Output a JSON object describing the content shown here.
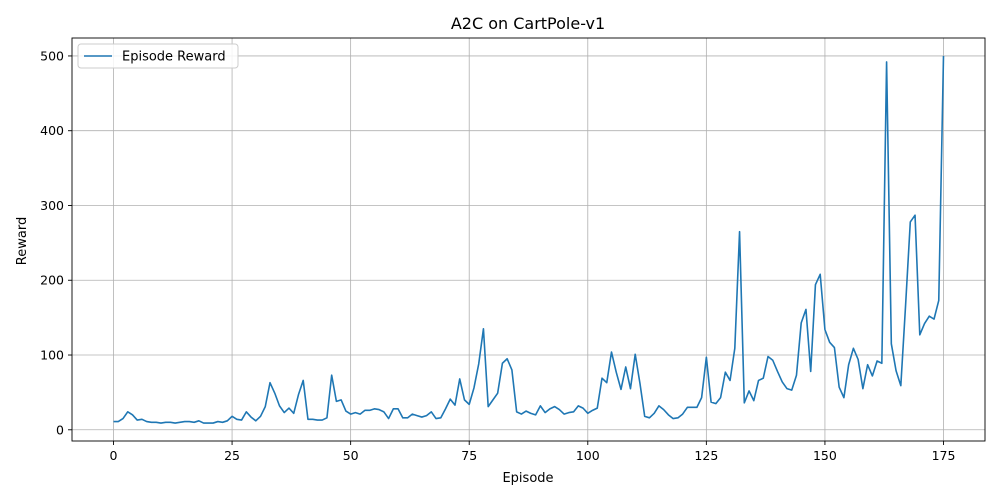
{
  "chart_data": {
    "type": "line",
    "title": "A2C on CartPole-v1",
    "xlabel": "Episode",
    "ylabel": "Reward",
    "xlim": [
      -8.75,
      183.75
    ],
    "ylim": [
      -15,
      524
    ],
    "xticks": [
      0,
      25,
      50,
      75,
      100,
      125,
      150,
      175
    ],
    "yticks": [
      0,
      100,
      200,
      300,
      400,
      500
    ],
    "grid": true,
    "legend": "upper left",
    "series": [
      {
        "name": "Episode Reward",
        "color": "#1f77b4",
        "x": [
          0,
          1,
          2,
          3,
          4,
          5,
          6,
          7,
          8,
          9,
          10,
          11,
          12,
          13,
          14,
          15,
          16,
          17,
          18,
          19,
          20,
          21,
          22,
          23,
          24,
          25,
          26,
          27,
          28,
          29,
          30,
          31,
          32,
          33,
          34,
          35,
          36,
          37,
          38,
          39,
          40,
          41,
          42,
          43,
          44,
          45,
          46,
          47,
          48,
          49,
          50,
          51,
          52,
          53,
          54,
          55,
          56,
          57,
          58,
          59,
          60,
          61,
          62,
          63,
          64,
          65,
          66,
          67,
          68,
          69,
          70,
          71,
          72,
          73,
          74,
          75,
          76,
          77,
          78,
          79,
          80,
          81,
          82,
          83,
          84,
          85,
          86,
          87,
          88,
          89,
          90,
          91,
          92,
          93,
          94,
          95,
          96,
          97,
          98,
          99,
          100,
          101,
          102,
          103,
          104,
          105,
          106,
          107,
          108,
          109,
          110,
          111,
          112,
          113,
          114,
          115,
          116,
          117,
          118,
          119,
          120,
          121,
          122,
          123,
          124,
          125,
          126,
          127,
          128,
          129,
          130,
          131,
          132,
          133,
          134,
          135,
          136,
          137,
          138,
          139,
          140,
          141,
          142,
          143,
          144,
          145,
          146,
          147,
          148,
          149,
          150,
          151,
          152,
          153,
          154,
          155,
          156,
          157,
          158,
          159,
          160,
          161,
          162,
          163,
          164,
          165,
          166,
          167,
          168,
          169,
          170,
          171,
          172,
          173,
          174,
          175
        ],
        "values": [
          11,
          11,
          15,
          24,
          20,
          13,
          14,
          11,
          10,
          10,
          9,
          10,
          10,
          9,
          10,
          11,
          11,
          10,
          12,
          9,
          9,
          9,
          11,
          10,
          12,
          18,
          14,
          13,
          24,
          17,
          12,
          18,
          31,
          63,
          49,
          32,
          23,
          29,
          22,
          47,
          66,
          14,
          14,
          13,
          13,
          16,
          73,
          38,
          40,
          25,
          21,
          23,
          21,
          26,
          26,
          28,
          27,
          24,
          15,
          28,
          28,
          16,
          16,
          21,
          19,
          17,
          19,
          24,
          15,
          16,
          28,
          41,
          33,
          68,
          40,
          34,
          56,
          88,
          135,
          31,
          40,
          49,
          89,
          95,
          80,
          24,
          21,
          25,
          22,
          20,
          32,
          23,
          28,
          31,
          27,
          21,
          23,
          24,
          32,
          29,
          22,
          26,
          29,
          69,
          63,
          104,
          77,
          54,
          84,
          55,
          101,
          62,
          18,
          16,
          22,
          32,
          27,
          20,
          15,
          16,
          21,
          30,
          30,
          30,
          43,
          97,
          37,
          35,
          43,
          77,
          66,
          109,
          265,
          36,
          52,
          39,
          66,
          69,
          98,
          93,
          78,
          64,
          55,
          53,
          73,
          143,
          161,
          78,
          194,
          208,
          134,
          117,
          110,
          57,
          43,
          87,
          109,
          94,
          55,
          87,
          72,
          92,
          89,
          492,
          115,
          79,
          59,
          166,
          278,
          287,
          127,
          142,
          152,
          148,
          173,
          500
        ]
      }
    ]
  }
}
